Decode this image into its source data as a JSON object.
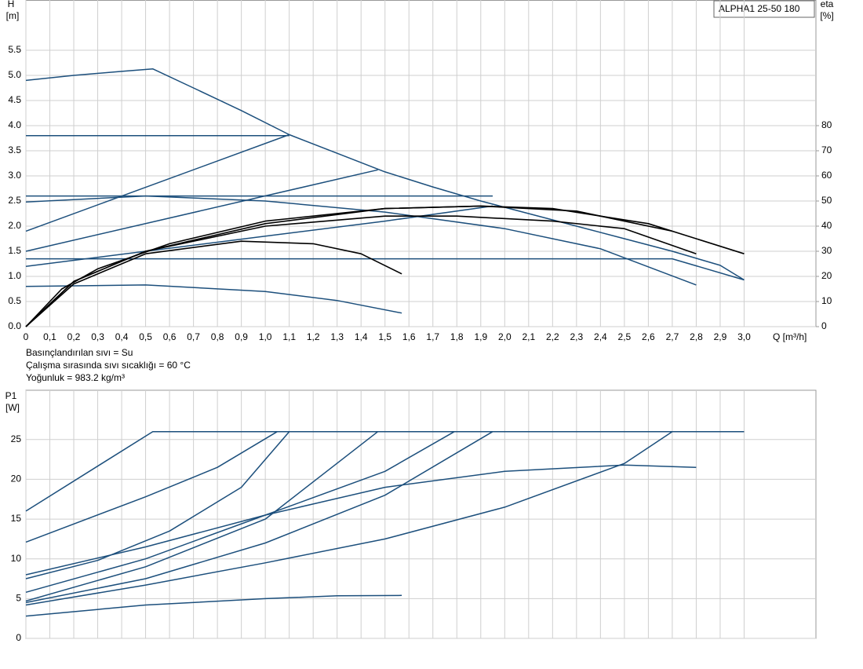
{
  "chart_data": [
    {
      "type": "line",
      "annotation": "ALPHA1 25-50 180",
      "y_label": "H",
      "y_unit": "[m]",
      "y2_label": "eta",
      "y2_unit": "[%]",
      "x_label": "Q [m³/h]",
      "notes": [
        "Basınçlandırılan sıvı = Su",
        "Çalışma sırasında sıvı sıcaklığı = 60 °C",
        "Yoğunluk = 983.2 kg/m³"
      ],
      "xlim": [
        0,
        3.3
      ],
      "ylim": [
        0,
        6.5
      ],
      "y2lim": [
        0,
        130
      ],
      "grid": true,
      "xticks": [
        0,
        {
          "value": 0.1,
          "label": "0,1"
        },
        {
          "value": 0.2,
          "label": "0,2"
        },
        {
          "value": 0.3,
          "label": "0,3"
        },
        {
          "value": 0.4,
          "label": "0,4"
        },
        {
          "value": 0.5,
          "label": "0,5"
        },
        {
          "value": 0.6,
          "label": "0,6"
        },
        {
          "value": 0.7,
          "label": "0,7"
        },
        {
          "value": 0.8,
          "label": "0,8"
        },
        {
          "value": 0.9,
          "label": "0,9"
        },
        {
          "value": 1.0,
          "label": "1,0"
        },
        {
          "value": 1.1,
          "label": "1,1"
        },
        {
          "value": 1.2,
          "label": "1,2"
        },
        {
          "value": 1.3,
          "label": "1,3"
        },
        {
          "value": 1.4,
          "label": "1,4"
        },
        {
          "value": 1.5,
          "label": "1,5"
        },
        {
          "value": 1.6,
          "label": "1,6"
        },
        {
          "value": 1.7,
          "label": "1,7"
        },
        {
          "value": 1.8,
          "label": "1,8"
        },
        {
          "value": 1.9,
          "label": "1,9"
        },
        {
          "value": 2.0,
          "label": "2,0"
        },
        {
          "value": 2.1,
          "label": "2,1"
        },
        {
          "value": 2.2,
          "label": "2,2"
        },
        {
          "value": 2.3,
          "label": "2,3"
        },
        {
          "value": 2.4,
          "label": "2,4"
        },
        {
          "value": 2.5,
          "label": "2,5"
        },
        {
          "value": 2.6,
          "label": "2,6"
        },
        {
          "value": 2.7,
          "label": "2,7"
        },
        {
          "value": 2.8,
          "label": "2,8"
        },
        {
          "value": 2.9,
          "label": "2,9"
        },
        {
          "value": 3.0,
          "label": "3,0"
        }
      ],
      "xtick_labels": true,
      "yticks": [
        {
          "value": 0,
          "label": "0.0"
        },
        0.5,
        {
          "value": 1,
          "label": "1.0"
        },
        1.5,
        {
          "value": 2,
          "label": "2.0"
        },
        2.5,
        {
          "value": 3,
          "label": "3.0"
        },
        3.5,
        {
          "value": 4,
          "label": "4.0"
        },
        4.5,
        {
          "value": 5,
          "label": "5.0"
        },
        5.5
      ],
      "y2ticks": [
        0,
        10,
        20,
        30,
        40,
        50,
        60,
        70,
        80
      ],
      "series": [
        {
          "color": "#1c4f7c",
          "x": [
            0,
            0.2,
            0.4,
            0.53,
            0.7,
            0.9,
            1.1,
            1.3,
            1.5,
            1.7,
            1.9,
            2.1,
            2.3,
            2.5,
            2.7,
            2.9,
            3.0
          ],
          "values": [
            4.9,
            5.0,
            5.08,
            5.13,
            4.75,
            4.3,
            3.82,
            3.45,
            3.08,
            2.78,
            2.5,
            2.25,
            2.0,
            1.75,
            1.5,
            1.22,
            0.93
          ]
        },
        {
          "color": "#1c4f7c",
          "x": [
            0,
            1.1
          ],
          "values": [
            3.8,
            3.8
          ]
        },
        {
          "color": "#1c4f7c",
          "x": [
            0,
            1.1
          ],
          "values": [
            1.9,
            3.82
          ]
        },
        {
          "color": "#1c4f7c",
          "x": [
            0,
            1.47
          ],
          "values": [
            1.5,
            3.12
          ]
        },
        {
          "color": "#1c4f7c",
          "x": [
            0,
            1.95
          ],
          "values": [
            2.6,
            2.6
          ]
        },
        {
          "color": "#1c4f7c",
          "x": [
            0,
            0.5,
            1.0,
            1.5,
            2.0,
            2.4,
            2.8
          ],
          "values": [
            2.48,
            2.6,
            2.5,
            2.28,
            1.95,
            1.55,
            0.83
          ]
        },
        {
          "color": "#1c4f7c",
          "x": [
            0,
            0.5,
            1.0,
            1.5,
            1.95
          ],
          "values": [
            1.2,
            1.5,
            1.8,
            2.1,
            2.4
          ]
        },
        {
          "color": "#1c4f7c",
          "x": [
            0,
            2.7,
            3.0
          ],
          "values": [
            1.35,
            1.35,
            0.93
          ]
        },
        {
          "color": "#1c4f7c",
          "x": [
            0,
            0.5,
            1.0,
            1.3,
            1.57
          ],
          "values": [
            0.8,
            0.83,
            0.7,
            0.52,
            0.27
          ]
        },
        {
          "color": "#000000",
          "axis": "y2",
          "x": [
            0,
            0.15,
            0.3,
            0.6,
            1.0,
            1.5,
            1.9,
            2.2,
            2.6,
            3.0
          ],
          "values": [
            0,
            15,
            23,
            33,
            42,
            47,
            48,
            47,
            41,
            29
          ]
        },
        {
          "color": "#000000",
          "axis": "y2",
          "x": [
            0,
            0.2,
            0.5,
            0.9,
            1.2,
            1.4,
            1.57
          ],
          "values": [
            0,
            17,
            29,
            34,
            33,
            29,
            21
          ]
        },
        {
          "color": "#000000",
          "axis": "y2",
          "x": [
            0,
            0.2,
            0.5,
            1.0,
            1.5,
            1.8,
            2.2,
            2.5,
            2.8
          ],
          "values": [
            0,
            18,
            30,
            40,
            44,
            44,
            42,
            39,
            29
          ]
        },
        {
          "color": "#000000",
          "axis": "y2",
          "x": [
            0,
            0.2,
            0.5,
            1.0,
            1.5,
            1.9,
            2.3,
            2.7
          ],
          "values": [
            0,
            18,
            30,
            41,
            47,
            48,
            46,
            38
          ]
        }
      ]
    },
    {
      "type": "line",
      "y_label": "P1",
      "y_unit": "[W]",
      "xlim": [
        0,
        3.3
      ],
      "ylim": [
        0,
        31.2
      ],
      "grid": true,
      "xticks": [
        0,
        0.1,
        0.2,
        0.3,
        0.4,
        0.5,
        0.6,
        0.7,
        0.8,
        0.9,
        1.0,
        1.1,
        1.2,
        1.3,
        1.4,
        1.5,
        1.6,
        1.7,
        1.8,
        1.9,
        2.0,
        2.1,
        2.2,
        2.3,
        2.4,
        2.5,
        2.6,
        2.7,
        2.8,
        2.9,
        3.0
      ],
      "xtick_labels": false,
      "yticks": [
        0,
        5,
        10,
        15,
        20,
        25
      ],
      "series": [
        {
          "color": "#1c4f7c",
          "x": [
            0,
            0.53,
            3.0
          ],
          "values": [
            16,
            26,
            26
          ]
        },
        {
          "color": "#1c4f7c",
          "x": [
            0,
            0.5,
            0.8,
            1.05
          ],
          "values": [
            12.1,
            17.8,
            21.5,
            26
          ]
        },
        {
          "color": "#1c4f7c",
          "x": [
            0,
            0.3,
            0.6,
            0.9,
            1.1
          ],
          "values": [
            7.5,
            9.8,
            13.5,
            19,
            26
          ]
        },
        {
          "color": "#1c4f7c",
          "x": [
            0,
            0.5,
            1.0,
            1.5,
            2.0,
            2.5,
            2.8
          ],
          "values": [
            8,
            11.5,
            15.5,
            19,
            21,
            21.8,
            21.5
          ]
        },
        {
          "color": "#1c4f7c",
          "x": [
            0,
            0.5,
            1.0,
            1.47
          ],
          "values": [
            4.7,
            9,
            15,
            26
          ]
        },
        {
          "color": "#1c4f7c",
          "x": [
            0,
            0.5,
            1.0,
            1.5,
            1.79
          ],
          "values": [
            5.8,
            10,
            15.5,
            21,
            26
          ]
        },
        {
          "color": "#1c4f7c",
          "x": [
            0,
            0.5,
            1.0,
            1.5,
            1.95
          ],
          "values": [
            4.5,
            7.5,
            12,
            18,
            26
          ]
        },
        {
          "color": "#1c4f7c",
          "x": [
            0,
            0.5,
            1.0,
            1.5,
            2.0,
            2.5,
            2.7
          ],
          "values": [
            4.2,
            6.7,
            9.5,
            12.5,
            16.5,
            22,
            26
          ]
        },
        {
          "color": "#1c4f7c",
          "x": [
            0,
            0.5,
            1.0,
            1.3,
            1.57
          ],
          "values": [
            2.8,
            4.2,
            5.0,
            5.35,
            5.4
          ]
        }
      ]
    }
  ]
}
